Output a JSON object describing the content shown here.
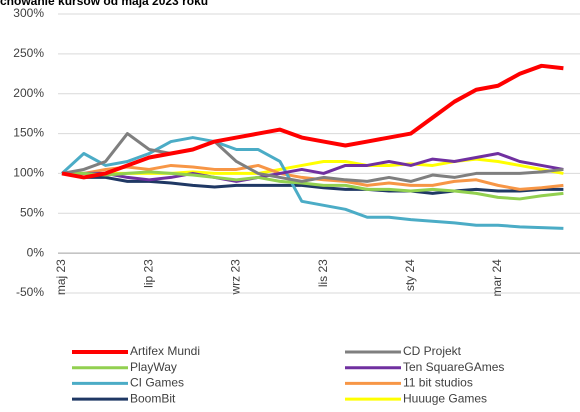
{
  "chart_data": {
    "type": "line",
    "title": "chowanie kursów od maja 2023 roku",
    "categories": [
      "maj 23",
      null,
      null,
      null,
      "lip 23",
      null,
      null,
      null,
      "wrz 23",
      null,
      null,
      null,
      "lis 23",
      null,
      null,
      null,
      "sty 24",
      null,
      null,
      null,
      "mar 24",
      null,
      null,
      null
    ],
    "series": [
      {
        "name": "Artifex Mundi",
        "color": "#ff0000",
        "values": [
          100,
          95,
          100,
          110,
          120,
          125,
          130,
          140,
          145,
          150,
          155,
          145,
          140,
          135,
          140,
          145,
          150,
          170,
          190,
          205,
          210,
          225,
          235,
          232
        ]
      },
      {
        "name": "CD Projekt",
        "color": "#7f7f7f",
        "values": [
          100,
          105,
          115,
          150,
          130,
          125,
          130,
          140,
          115,
          100,
          95,
          90,
          95,
          92,
          90,
          95,
          90,
          98,
          95,
          100,
          100,
          100,
          102,
          105
        ]
      },
      {
        "name": "PlayWay",
        "color": "#92d050",
        "values": [
          100,
          100,
          98,
          100,
          102,
          100,
          98,
          95,
          92,
          95,
          90,
          88,
          85,
          85,
          80,
          80,
          78,
          80,
          78,
          75,
          70,
          68,
          72,
          75
        ]
      },
      {
        "name": "Ten SquareGAmes",
        "color": "#7030a0",
        "values": [
          100,
          100,
          100,
          95,
          92,
          95,
          100,
          95,
          90,
          95,
          100,
          105,
          100,
          110,
          110,
          115,
          110,
          118,
          115,
          120,
          125,
          115,
          110,
          105
        ]
      },
      {
        "name": "CI Games",
        "color": "#4bacc6",
        "values": [
          100,
          125,
          110,
          115,
          125,
          140,
          145,
          140,
          130,
          130,
          115,
          65,
          60,
          55,
          45,
          45,
          42,
          40,
          38,
          35,
          35,
          33,
          32,
          31
        ]
      },
      {
        "name": "11 bit studios",
        "color": "#f79646",
        "values": [
          100,
          100,
          105,
          108,
          105,
          110,
          108,
          105,
          105,
          110,
          100,
          95,
          92,
          90,
          85,
          88,
          85,
          85,
          90,
          92,
          85,
          80,
          82,
          85
        ]
      },
      {
        "name": "BoomBit",
        "color": "#1f3864",
        "values": [
          100,
          95,
          95,
          90,
          90,
          88,
          85,
          83,
          85,
          85,
          85,
          85,
          82,
          80,
          80,
          78,
          78,
          75,
          78,
          80,
          78,
          78,
          80,
          80
        ]
      },
      {
        "name": "Huuuge Games",
        "color": "#ffff00",
        "values": [
          100,
          100,
          100,
          100,
          100,
          100,
          102,
          100,
          100,
          100,
          105,
          110,
          115,
          115,
          110,
          110,
          112,
          110,
          115,
          118,
          115,
          110,
          105,
          100
        ]
      }
    ],
    "ylim": [
      -50,
      300
    ],
    "yticks": [
      {
        "value": -50,
        "label": "-50%"
      },
      {
        "value": 0,
        "label": "0%"
      },
      {
        "value": 50,
        "label": "50%"
      },
      {
        "value": 100,
        "label": "100%"
      },
      {
        "value": 150,
        "label": "150%"
      },
      {
        "value": 200,
        "label": "200%"
      },
      {
        "value": 250,
        "label": "250%"
      },
      {
        "value": 300,
        "label": "300%"
      }
    ],
    "grid": true
  }
}
